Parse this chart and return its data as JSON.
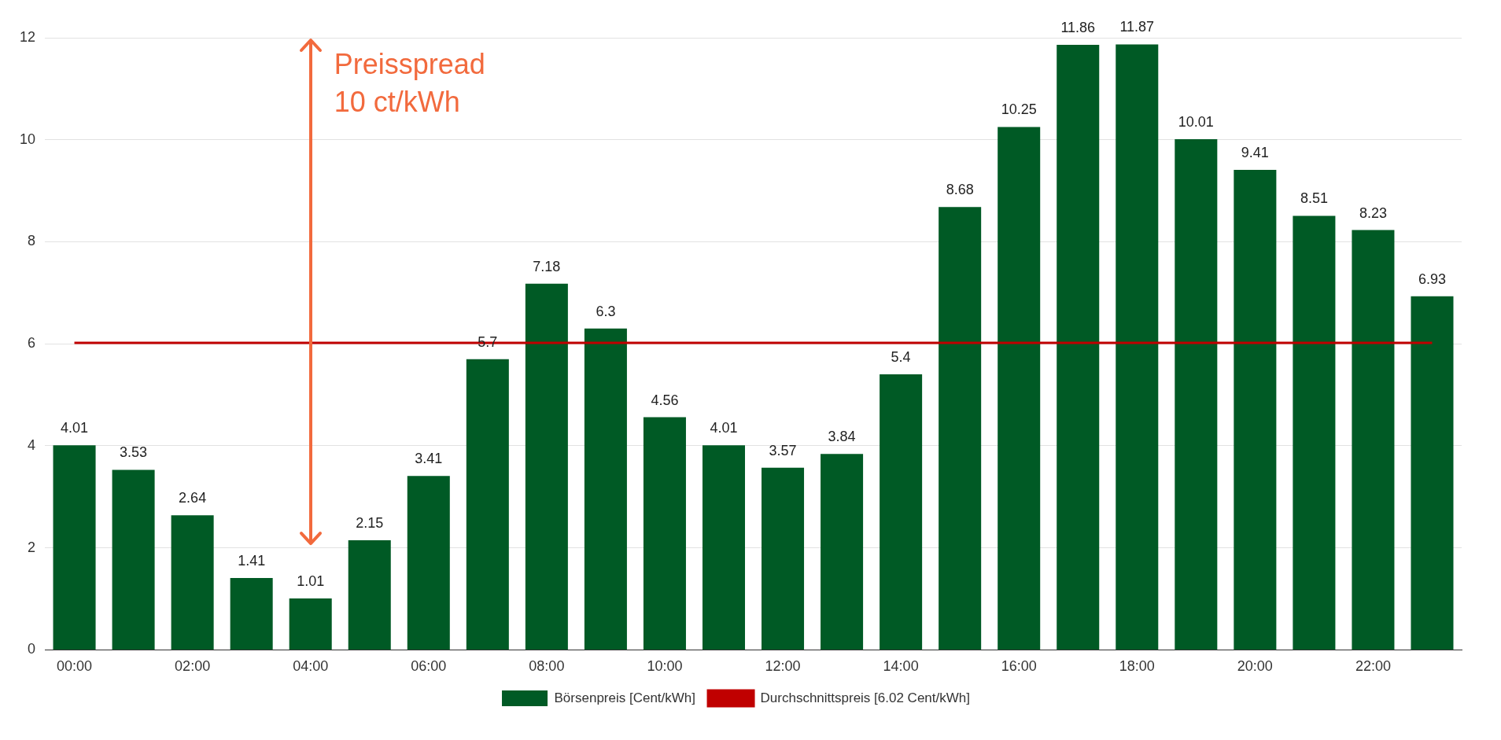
{
  "chart_data": {
    "type": "bar",
    "categories": [
      "00:00",
      null,
      "02:00",
      null,
      "04:00",
      null,
      "06:00",
      null,
      "08:00",
      null,
      "10:00",
      null,
      "12:00",
      null,
      "14:00",
      null,
      "16:00",
      null,
      "18:00",
      null,
      "20:00",
      null,
      "22:00",
      null
    ],
    "series": [
      {
        "name": "Börsenpreis [Cent/kWh]",
        "color": "#005a25",
        "values": [
          4.01,
          3.53,
          2.64,
          1.41,
          1.01,
          2.15,
          3.41,
          5.7,
          7.18,
          6.3,
          4.56,
          4.01,
          3.57,
          3.84,
          5.4,
          8.68,
          10.25,
          11.86,
          11.87,
          10.01,
          9.41,
          8.51,
          8.23,
          6.93
        ],
        "value_labels": [
          "4.01",
          "3.53",
          "2.64",
          "1.41",
          "1.01",
          "2.15",
          "3.41",
          "5.7",
          "7.18",
          "6.3",
          "4.56",
          "4.01",
          "3.57",
          "3.84",
          "5.4",
          "8.68",
          "10.25",
          "11.86",
          "11.87",
          "10.01",
          "9.41",
          "8.51",
          "8.23",
          "6.93"
        ]
      },
      {
        "name": "Durchschnittspreis [6.02 Cent/kWh]",
        "type": "line",
        "color": "#c00000",
        "marker": "none",
        "values": [
          6.02,
          6.02,
          6.02,
          6.02,
          6.02,
          6.02,
          6.02,
          6.02,
          6.02,
          6.02,
          6.02,
          6.02,
          6.02,
          6.02,
          6.02,
          6.02,
          6.02,
          6.02,
          6.02,
          6.02,
          6.02,
          6.02,
          6.02,
          6.02
        ]
      }
    ],
    "ylim": [
      0,
      12
    ],
    "yticks": [
      0,
      2,
      4,
      6,
      8,
      10,
      12
    ],
    "grid": "y",
    "legend": "bottom",
    "annotations": [
      "Preisspread",
      "10 ct/kWh"
    ]
  }
}
